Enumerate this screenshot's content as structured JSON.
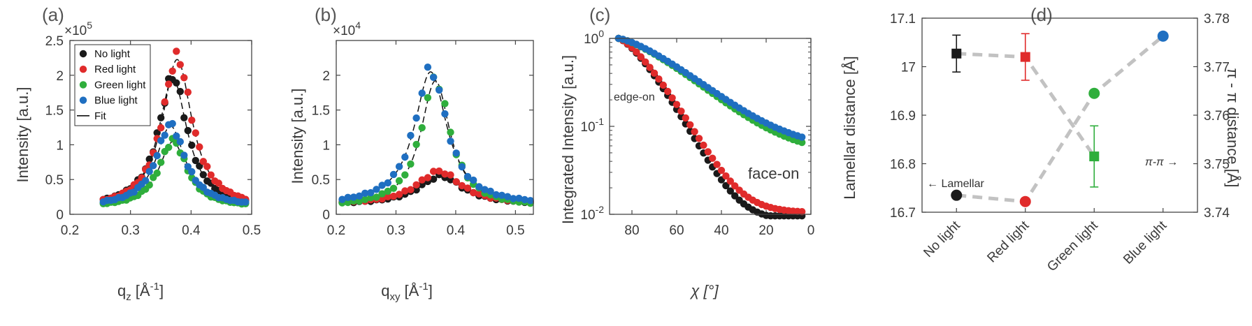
{
  "chart_data": [
    {
      "panel_label": "(a)",
      "type": "scatter",
      "xlabel": "q",
      "xlabel_sub": "z",
      "xlabel_unit": " [Å",
      "xlabel_unit_sup": "-1",
      "xlabel_unit_end": "]",
      "ylabel": "Intensity [a.u.]",
      "multiplier_base": "×10",
      "multiplier_exp": "5",
      "xlim": [
        0.2,
        0.5
      ],
      "ylim": [
        0,
        2.5
      ],
      "xticks": [
        "0.2",
        "0.3",
        "0.4",
        "0.5"
      ],
      "yticks": [
        "0",
        "0.5",
        "1",
        "1.5",
        "2",
        "2.5"
      ],
      "legend": {
        "placement": "top-left",
        "entries": [
          "No light",
          "Red light",
          "Green light",
          "Blue light",
          "Fit"
        ]
      },
      "series": [
        {
          "name": "No light",
          "color": "#1a1a1a",
          "peak": {
            "center": 0.37,
            "amplitude": 1.88,
            "width": 0.029,
            "base": 0.1
          }
        },
        {
          "name": "Red light",
          "color": "#e02b2b",
          "peak": {
            "center": 0.377,
            "amplitude": 2.18,
            "width": 0.03,
            "base": 0.08
          }
        },
        {
          "name": "Green light",
          "color": "#2fae3c",
          "peak": {
            "center": 0.37,
            "amplitude": 0.96,
            "width": 0.028,
            "base": 0.1
          }
        },
        {
          "name": "Blue light",
          "color": "#1f6fc1",
          "peak": {
            "center": 0.366,
            "amplitude": 1.18,
            "width": 0.029,
            "base": 0.11
          }
        }
      ],
      "x_range_data": [
        0.255,
        0.49
      ],
      "n_points": 38
    },
    {
      "panel_label": "(b)",
      "type": "scatter",
      "xlabel": "q",
      "xlabel_sub": "xy",
      "xlabel_unit": " [Å",
      "xlabel_unit_sup": "-1",
      "xlabel_unit_end": "]",
      "ylabel": "Intensity [a.u.]",
      "multiplier_base": "×10",
      "multiplier_exp": "4",
      "xlim": [
        0.2,
        0.53
      ],
      "ylim": [
        0,
        2.5
      ],
      "xticks": [
        "0.2",
        "0.3",
        "0.4",
        "0.5"
      ],
      "yticks": [
        "0",
        "0.5",
        "1",
        "1.5",
        "2"
      ],
      "series": [
        {
          "name": "No light",
          "color": "#1a1a1a",
          "peak": {
            "center": 0.375,
            "amplitude": 0.41,
            "width": 0.045,
            "base": 0.14
          }
        },
        {
          "name": "Red light",
          "color": "#e02b2b",
          "peak": {
            "center": 0.372,
            "amplitude": 0.48,
            "width": 0.045,
            "base": 0.14
          }
        },
        {
          "name": "Green light",
          "color": "#2fae3c",
          "peak": {
            "center": 0.366,
            "amplitude": 1.85,
            "width": 0.03,
            "base": 0.1
          }
        },
        {
          "name": "Blue light",
          "color": "#1f6fc1",
          "peak": {
            "center": 0.358,
            "amplitude": 1.95,
            "width": 0.033,
            "base": 0.13
          }
        }
      ],
      "x_range_data": [
        0.21,
        0.525
      ],
      "n_points": 34
    },
    {
      "panel_label": "(c)",
      "type": "scatter",
      "xlabel": "χ [°]",
      "ylabel": "Integrated Intensity [a.u.]",
      "y_scale": "log",
      "xlim": [
        90,
        0
      ],
      "ylim": [
        0.01,
        1
      ],
      "xticks": [
        "80",
        "60",
        "40",
        "20",
        "0"
      ],
      "yticks_base": "10",
      "yticks_exp": [
        "0",
        "-1",
        "-2"
      ],
      "annotations": [
        "edge-on",
        "face-on"
      ],
      "series": [
        {
          "name": "No light",
          "color": "#1a1a1a",
          "decay": {
            "k": 0.062,
            "floor": 0.0085
          }
        },
        {
          "name": "Red light",
          "color": "#e02b2b",
          "decay": {
            "k": 0.059,
            "floor": 0.0105
          }
        },
        {
          "name": "Green light",
          "color": "#2fae3c",
          "decay": {
            "k": 0.034,
            "floor": 0.048
          }
        },
        {
          "name": "Blue light",
          "color": "#1f6fc1",
          "decay": {
            "k": 0.033,
            "floor": 0.055
          }
        }
      ],
      "x_range_data": [
        86,
        4
      ],
      "n_points": 42
    },
    {
      "panel_label": "(d)",
      "type": "scatter",
      "categories": [
        "No light",
        "Red light",
        "Green light",
        "Blue light"
      ],
      "ylabel_left": "Lamellar distance [Å]",
      "ylabel_right": "π - π distance [Å]",
      "ylim_left": [
        16.7,
        17.1
      ],
      "ylim_right": [
        3.74,
        3.78
      ],
      "yticks_left": [
        "16.7",
        "16.8",
        "16.9",
        "17",
        "17.1"
      ],
      "yticks_right": [
        "3.74",
        "3.75",
        "3.76",
        "3.77",
        "3.78"
      ],
      "annotations": {
        "lamellar": "← Lamellar",
        "pipi": "π-π →"
      },
      "series": [
        {
          "name": "Lamellar",
          "marker": "square",
          "values": [
            17.027,
            17.02,
            16.815,
            null
          ],
          "errors": [
            0.038,
            0.048,
            0.063,
            null
          ]
        },
        {
          "name": "π-π",
          "marker": "circle",
          "values": [
            3.7435,
            3.7422,
            3.7645,
            3.7763
          ]
        }
      ],
      "colors": [
        "#1a1a1a",
        "#e02b2b",
        "#2fae3c",
        "#1f6fc1"
      ],
      "connector_color": "#c2c2c2"
    }
  ]
}
